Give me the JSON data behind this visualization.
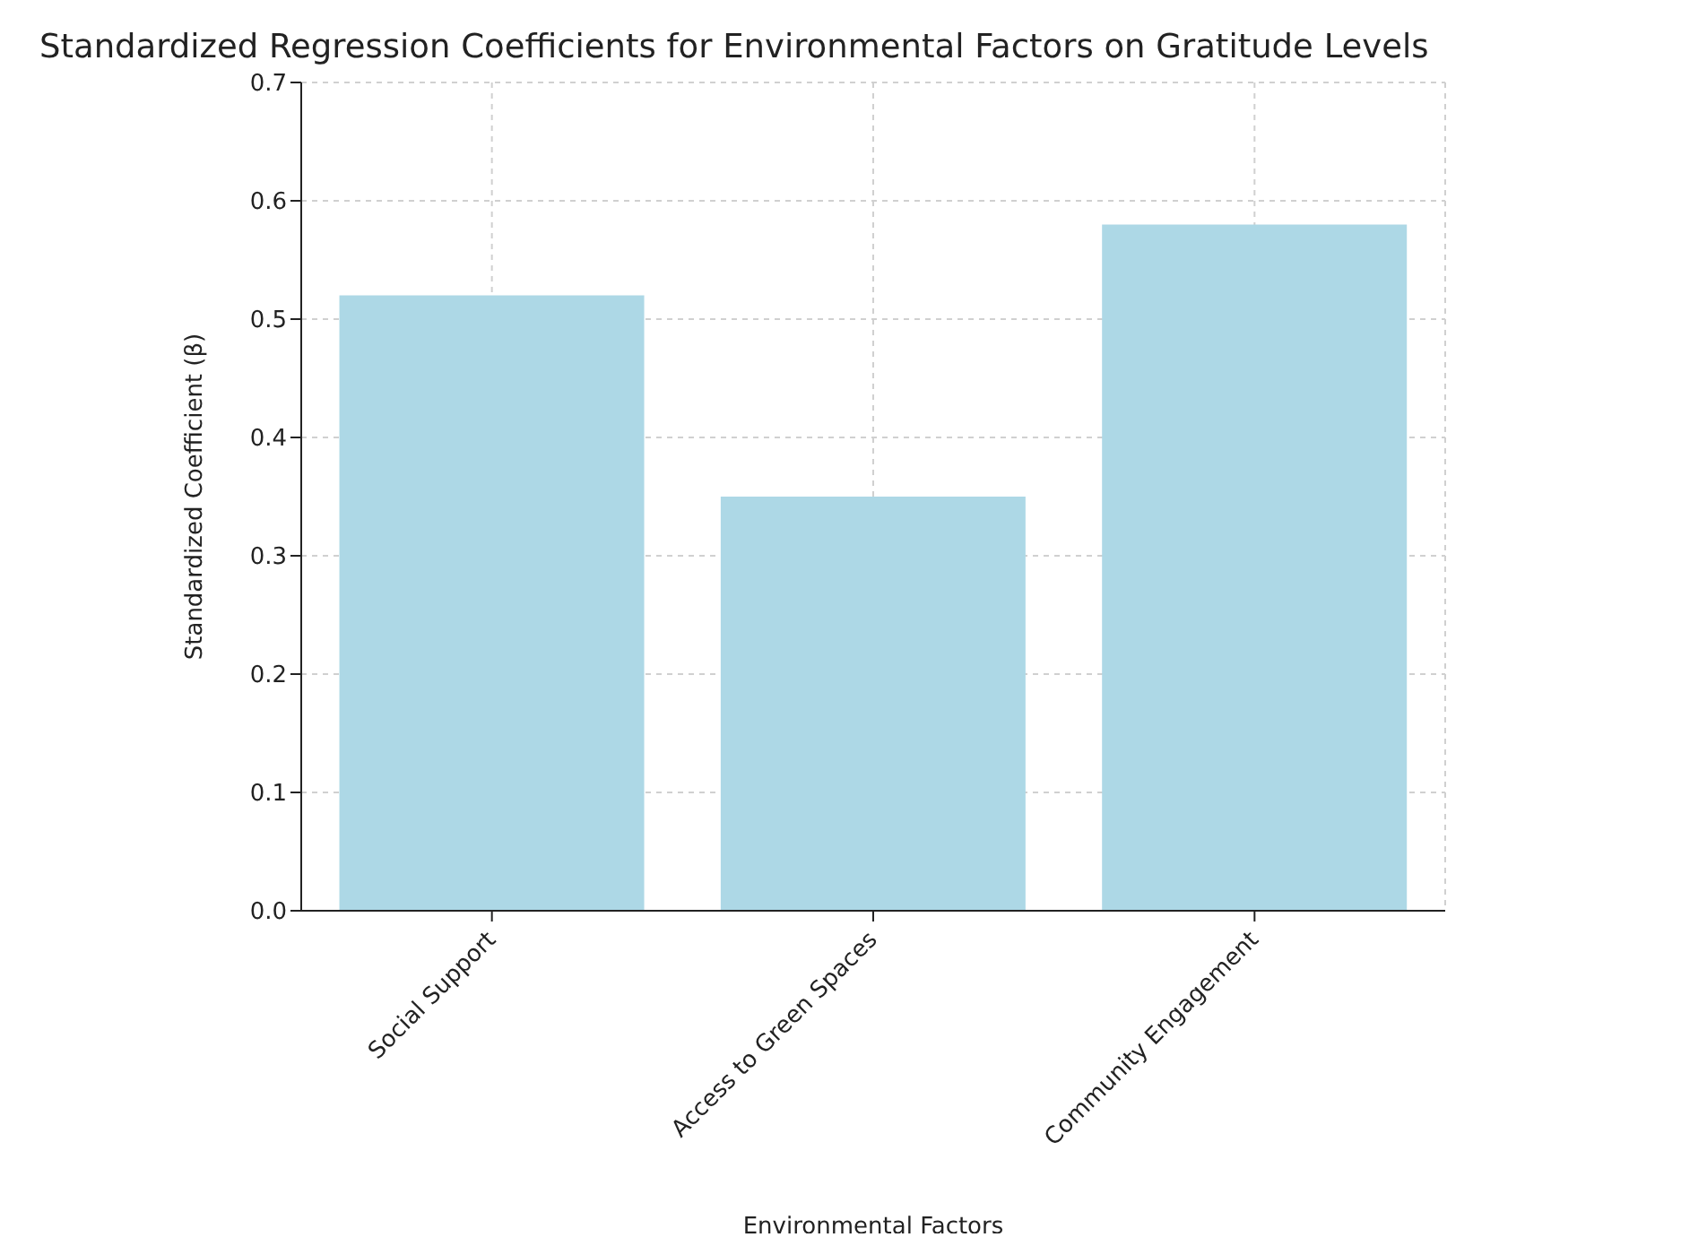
{
  "chart_data": {
    "type": "bar",
    "title": "Standardized Regression Coefficients for Environmental Factors on Gratitude Levels",
    "xlabel": "Environmental Factors",
    "ylabel": "Standardized Coefficient (β)",
    "categories": [
      "Social Support",
      "Access to Green Spaces",
      "Community Engagement"
    ],
    "values": [
      0.52,
      0.35,
      0.58
    ],
    "color": "#add8e6",
    "ylim": [
      0,
      0.7
    ],
    "yticks": [
      {
        "value": 0,
        "label": "0.0"
      },
      0.1,
      0.2,
      0.3,
      0.4,
      0.5,
      0.6,
      0.7
    ],
    "grid": true
  }
}
